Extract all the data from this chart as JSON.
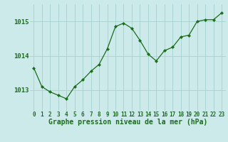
{
  "x": [
    0,
    1,
    2,
    3,
    4,
    5,
    6,
    7,
    8,
    9,
    10,
    11,
    12,
    13,
    14,
    15,
    16,
    17,
    18,
    19,
    20,
    21,
    22,
    23
  ],
  "y": [
    1013.65,
    1013.1,
    1012.95,
    1012.85,
    1012.75,
    1013.1,
    1013.3,
    1013.55,
    1013.75,
    1014.2,
    1014.85,
    1014.95,
    1014.8,
    1014.45,
    1014.05,
    1013.85,
    1014.15,
    1014.25,
    1014.55,
    1014.6,
    1015.0,
    1015.05,
    1015.05,
    1015.25
  ],
  "line_color": "#1a6e1a",
  "marker": "D",
  "marker_size": 2.2,
  "bg_color": "#cceaea",
  "grid_color": "#aad4d4",
  "xlabel": "Graphe pression niveau de la mer (hPa)",
  "xlabel_fontsize": 7,
  "ytick_labels": [
    "1013",
    "1014",
    "1015"
  ],
  "ytick_values": [
    1013,
    1014,
    1015
  ],
  "ylim": [
    1012.4,
    1015.5
  ],
  "xlim": [
    -0.5,
    23.5
  ],
  "xtick_labels": [
    "0",
    "1",
    "2",
    "3",
    "4",
    "5",
    "6",
    "7",
    "8",
    "9",
    "10",
    "11",
    "12",
    "13",
    "14",
    "15",
    "16",
    "17",
    "18",
    "19",
    "20",
    "21",
    "22",
    "23"
  ],
  "tick_fontsize": 5.5,
  "ytick_fontsize": 6.5
}
